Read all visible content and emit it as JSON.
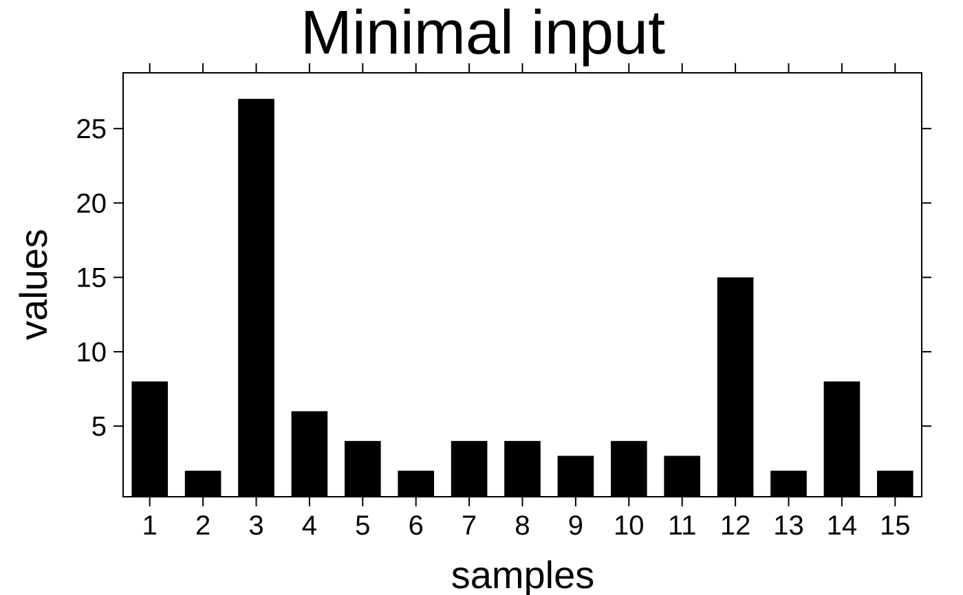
{
  "chart_data": {
    "type": "bar",
    "title": "Minimal input",
    "xlabel": "samples",
    "ylabel": "values",
    "categories": [
      "1",
      "2",
      "3",
      "4",
      "5",
      "6",
      "7",
      "8",
      "9",
      "10",
      "11",
      "12",
      "13",
      "14",
      "15"
    ],
    "values": [
      8,
      2,
      27,
      6,
      4,
      2,
      4,
      4,
      3,
      4,
      3,
      15,
      2,
      8,
      2
    ],
    "ylim": [
      0.25,
      28.75
    ],
    "yticks": [
      5,
      10,
      15,
      20,
      25
    ],
    "bar_color": "#000000",
    "grid": false,
    "legend": "none"
  }
}
